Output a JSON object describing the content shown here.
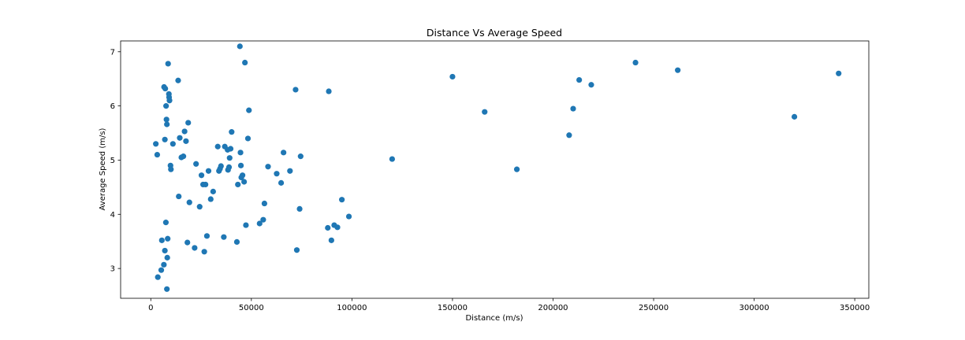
{
  "chart_data": {
    "type": "scatter",
    "title": "Distance Vs Average Speed",
    "xlabel": "Distance (m/s)",
    "ylabel": "Average Speed (m/s)",
    "xlim": [
      -15000,
      357000
    ],
    "ylim": [
      2.45,
      7.2
    ],
    "xticks": [
      0,
      50000,
      100000,
      150000,
      200000,
      250000,
      300000,
      350000
    ],
    "xtick_labels": [
      "0",
      "50000",
      "100000",
      "150000",
      "200000",
      "250000",
      "300000",
      "350000"
    ],
    "yticks": [
      3,
      4,
      5,
      6,
      7
    ],
    "ytick_labels": [
      "3",
      "4",
      "5",
      "6",
      "7"
    ],
    "grid": false,
    "marker_color": "#1f77b4",
    "points": [
      [
        2500,
        5.3
      ],
      [
        3200,
        5.1
      ],
      [
        3500,
        2.84
      ],
      [
        5200,
        2.97
      ],
      [
        5500,
        3.52
      ],
      [
        6500,
        3.07
      ],
      [
        6600,
        6.35
      ],
      [
        7000,
        5.38
      ],
      [
        7000,
        3.33
      ],
      [
        7200,
        6.32
      ],
      [
        7500,
        3.85
      ],
      [
        7600,
        6.0
      ],
      [
        7800,
        5.75
      ],
      [
        8000,
        5.66
      ],
      [
        8000,
        2.62
      ],
      [
        8200,
        3.2
      ],
      [
        8400,
        3.55
      ],
      [
        8600,
        6.78
      ],
      [
        9000,
        6.22
      ],
      [
        9100,
        6.16
      ],
      [
        9300,
        6.1
      ],
      [
        9800,
        4.9
      ],
      [
        10000,
        4.83
      ],
      [
        11000,
        5.3
      ],
      [
        13600,
        6.47
      ],
      [
        13900,
        4.33
      ],
      [
        14400,
        5.41
      ],
      [
        15200,
        5.05
      ],
      [
        16200,
        5.07
      ],
      [
        16800,
        5.53
      ],
      [
        17500,
        5.35
      ],
      [
        18200,
        3.48
      ],
      [
        18600,
        5.69
      ],
      [
        19200,
        4.22
      ],
      [
        21800,
        3.38
      ],
      [
        22500,
        4.93
      ],
      [
        24300,
        4.14
      ],
      [
        25200,
        4.72
      ],
      [
        26000,
        4.55
      ],
      [
        26600,
        3.31
      ],
      [
        27200,
        4.55
      ],
      [
        27900,
        3.6
      ],
      [
        28700,
        4.8
      ],
      [
        29800,
        4.28
      ],
      [
        31000,
        4.42
      ],
      [
        33300,
        5.25
      ],
      [
        33900,
        4.8
      ],
      [
        34400,
        4.84
      ],
      [
        34900,
        4.89
      ],
      [
        36300,
        3.58
      ],
      [
        36800,
        5.25
      ],
      [
        38200,
        5.19
      ],
      [
        38400,
        4.82
      ],
      [
        38900,
        4.87
      ],
      [
        39200,
        5.04
      ],
      [
        39700,
        5.21
      ],
      [
        40200,
        5.52
      ],
      [
        42800,
        3.49
      ],
      [
        43300,
        4.55
      ],
      [
        44300,
        7.1
      ],
      [
        44600,
        5.14
      ],
      [
        44800,
        4.9
      ],
      [
        45000,
        4.68
      ],
      [
        45600,
        4.72
      ],
      [
        46400,
        4.6
      ],
      [
        46800,
        6.8
      ],
      [
        47300,
        3.8
      ],
      [
        48300,
        5.4
      ],
      [
        48800,
        5.92
      ],
      [
        54100,
        3.83
      ],
      [
        55900,
        3.9
      ],
      [
        56500,
        4.2
      ],
      [
        58300,
        4.88
      ],
      [
        62600,
        4.75
      ],
      [
        64800,
        4.58
      ],
      [
        66000,
        5.14
      ],
      [
        69200,
        4.8
      ],
      [
        72000,
        6.3
      ],
      [
        72600,
        3.34
      ],
      [
        74000,
        4.1
      ],
      [
        74500,
        5.07
      ],
      [
        88000,
        3.75
      ],
      [
        88500,
        6.27
      ],
      [
        89800,
        3.52
      ],
      [
        91200,
        3.8
      ],
      [
        92800,
        3.76
      ],
      [
        95000,
        4.27
      ],
      [
        98500,
        3.96
      ],
      [
        120000,
        5.02
      ],
      [
        150000,
        6.54
      ],
      [
        166000,
        5.89
      ],
      [
        182000,
        4.83
      ],
      [
        208000,
        5.46
      ],
      [
        210000,
        5.95
      ],
      [
        213000,
        6.48
      ],
      [
        219000,
        6.39
      ],
      [
        241000,
        6.8
      ],
      [
        262000,
        6.66
      ],
      [
        320000,
        5.8
      ],
      [
        342000,
        6.6
      ]
    ]
  }
}
